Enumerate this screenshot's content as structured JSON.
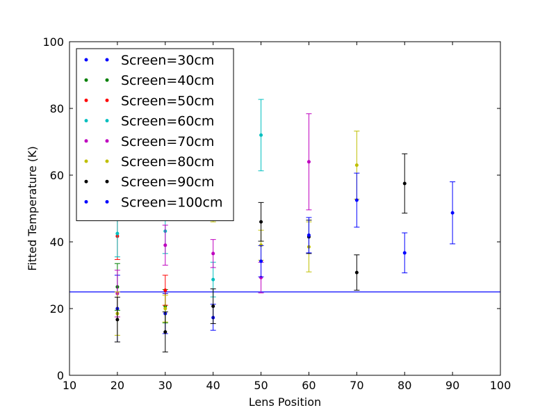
{
  "chart_data": {
    "type": "scatter",
    "title": "",
    "xlabel": "Lens Position",
    "ylabel": "Fitted Temperature (K)",
    "xlim": [
      10,
      100
    ],
    "ylim": [
      0,
      100
    ],
    "xticks": [
      10,
      20,
      30,
      40,
      50,
      60,
      70,
      80,
      90,
      100
    ],
    "yticks": [
      0,
      20,
      40,
      60,
      80,
      100
    ],
    "grid": false,
    "legend_position": "top-left",
    "reference_line": {
      "y": 25,
      "color": "#0000ff"
    },
    "series": [
      {
        "name": "Screen=30cm",
        "color": "#0000ff",
        "points": [
          {
            "x": 20,
            "y": 20.0,
            "lo": 10.0,
            "hi": 30.0
          },
          {
            "x": 30,
            "y": 18.5,
            "lo": 12.5,
            "hi": 24.5
          },
          {
            "x": 40,
            "y": 17.3,
            "lo": 13.5,
            "hi": 21.3
          }
        ]
      },
      {
        "name": "Screen=40cm",
        "color": "#008000",
        "points": [
          {
            "x": 20,
            "y": 26.5,
            "lo": 19.5,
            "hi": 33.5
          },
          {
            "x": 30,
            "y": 20.7,
            "lo": 15.7,
            "hi": 25.7
          }
        ]
      },
      {
        "name": "Screen=50cm",
        "color": "#ff0000",
        "points": [
          {
            "x": 20,
            "y": 41.7,
            "lo": 34.7,
            "hi": 48.7
          },
          {
            "x": 30,
            "y": 25.5,
            "lo": 21.0,
            "hi": 30.0
          }
        ]
      },
      {
        "name": "Screen=60cm",
        "color": "#00bfbf",
        "points": [
          {
            "x": 20,
            "y": 42.5,
            "lo": 35.5,
            "hi": 49.5
          },
          {
            "x": 30,
            "y": 43.2,
            "lo": 36.5,
            "hi": 49.9
          },
          {
            "x": 40,
            "y": 28.7,
            "lo": 23.5,
            "hi": 33.9
          },
          {
            "x": 50,
            "y": 72.0,
            "lo": 61.3,
            "hi": 82.7
          }
        ]
      },
      {
        "name": "Screen=70cm",
        "color": "#bf00bf",
        "points": [
          {
            "x": 20,
            "y": 24.5,
            "lo": 17.5,
            "hi": 31.5
          },
          {
            "x": 30,
            "y": 39.0,
            "lo": 33.0,
            "hi": 45.0
          },
          {
            "x": 40,
            "y": 36.5,
            "lo": 32.3,
            "hi": 40.7
          },
          {
            "x": 50,
            "y": 29.3,
            "lo": 24.7,
            "hi": 33.9
          },
          {
            "x": 60,
            "y": 64.0,
            "lo": 49.6,
            "hi": 78.4
          }
        ]
      },
      {
        "name": "Screen=80cm",
        "color": "#bfbf00",
        "points": [
          {
            "x": 20,
            "y": 18.5,
            "lo": 12.0,
            "hi": 25.0
          },
          {
            "x": 30,
            "y": 20.0,
            "lo": 16.0,
            "hi": 24.0
          },
          {
            "x": 40,
            "y": 48.0,
            "lo": 46.0,
            "hi": 50.0
          },
          {
            "x": 50,
            "y": 39.0,
            "lo": 34.5,
            "hi": 43.5
          },
          {
            "x": 60,
            "y": 38.5,
            "lo": 31.0,
            "hi": 46.0
          },
          {
            "x": 70,
            "y": 63.0,
            "lo": 52.8,
            "hi": 73.2
          }
        ]
      },
      {
        "name": "Screen=90cm",
        "color": "#000000",
        "points": [
          {
            "x": 20,
            "y": 16.7,
            "lo": 10.0,
            "hi": 23.4
          },
          {
            "x": 30,
            "y": 13.0,
            "lo": 7.0,
            "hi": 19.0
          },
          {
            "x": 40,
            "y": 20.7,
            "lo": 15.5,
            "hi": 25.9
          },
          {
            "x": 50,
            "y": 46.0,
            "lo": 40.2,
            "hi": 51.8
          },
          {
            "x": 60,
            "y": 41.5,
            "lo": 36.5,
            "hi": 46.5
          },
          {
            "x": 70,
            "y": 30.8,
            "lo": 25.5,
            "hi": 36.1
          },
          {
            "x": 80,
            "y": 57.5,
            "lo": 48.6,
            "hi": 66.4
          }
        ]
      },
      {
        "name": "Screen=100cm",
        "color": "#0000ff",
        "points": [
          {
            "x": 50,
            "y": 34.2,
            "lo": 29.5,
            "hi": 38.9
          },
          {
            "x": 60,
            "y": 42.0,
            "lo": 36.7,
            "hi": 47.3
          },
          {
            "x": 70,
            "y": 52.5,
            "lo": 44.4,
            "hi": 60.6
          },
          {
            "x": 80,
            "y": 36.7,
            "lo": 30.7,
            "hi": 42.7
          },
          {
            "x": 90,
            "y": 48.7,
            "lo": 39.4,
            "hi": 58.0
          }
        ]
      }
    ]
  }
}
